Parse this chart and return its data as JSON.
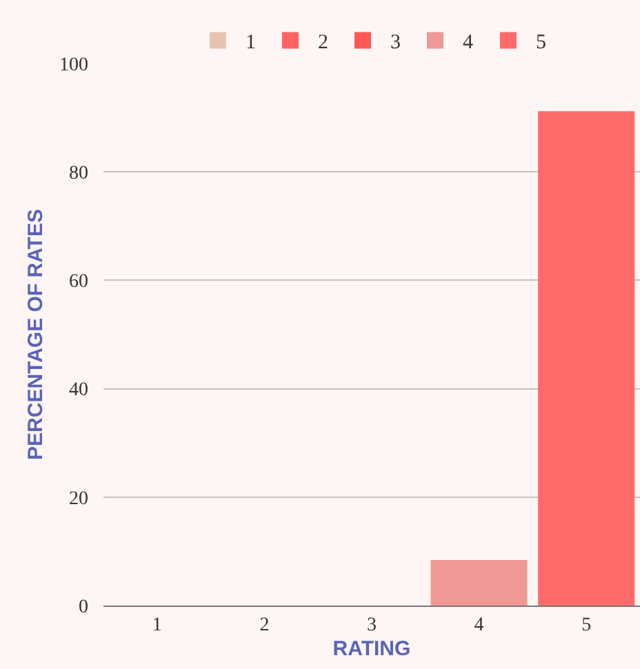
{
  "chart_data": {
    "type": "bar",
    "xlabel": "RATING",
    "ylabel": "PERCENTAGE OF RATES",
    "categories": [
      "1",
      "2",
      "3",
      "4",
      "5"
    ],
    "series": [
      {
        "name": "1",
        "color": "#e8c4b0",
        "values": [
          0,
          null,
          null,
          null,
          null
        ]
      },
      {
        "name": "2",
        "color": "#ff6363",
        "values": [
          null,
          0,
          null,
          null,
          null
        ]
      },
      {
        "name": "3",
        "color": "#ff5858",
        "values": [
          null,
          null,
          0,
          null,
          null
        ]
      },
      {
        "name": "4",
        "color": "#f09896",
        "values": [
          null,
          null,
          null,
          8.4,
          null
        ]
      },
      {
        "name": "5",
        "color": "#ff6b6b",
        "values": [
          null,
          null,
          null,
          null,
          91.2
        ]
      }
    ],
    "ylim": [
      0,
      100
    ],
    "yticks": [
      0,
      20,
      40,
      60,
      80,
      100
    ],
    "grid": "y",
    "legend": "top"
  }
}
